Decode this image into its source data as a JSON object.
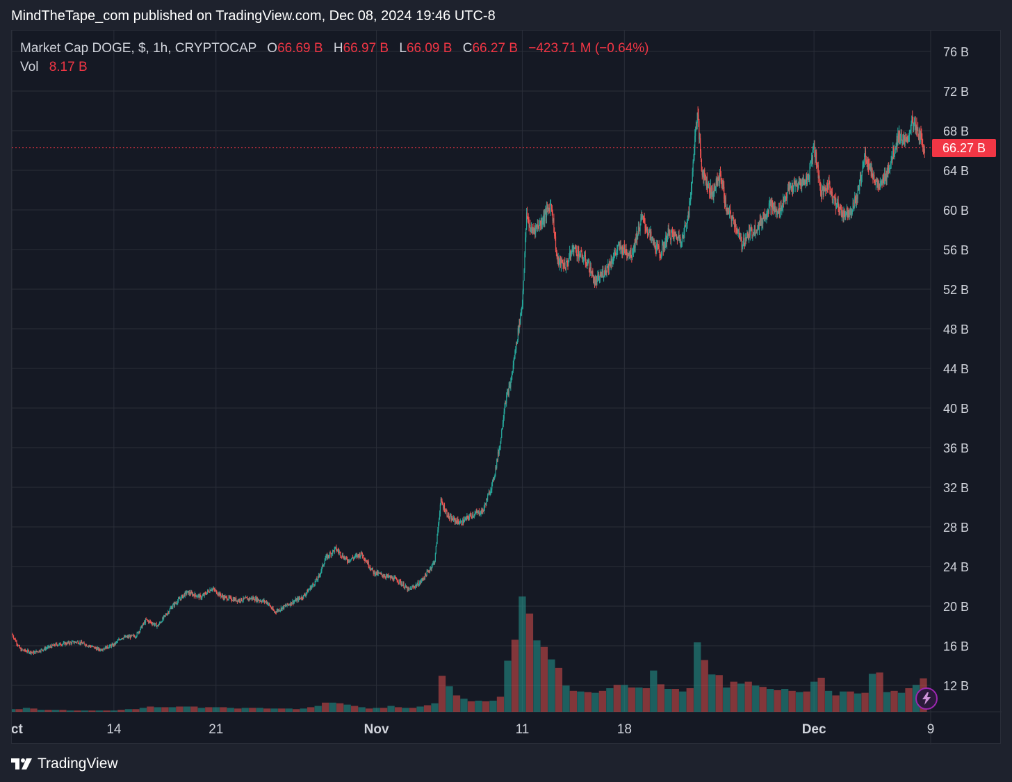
{
  "header": {
    "text": "MindTheTape_com published on TradingView.com, Dec 08, 2024 19:46 UTC-8"
  },
  "legend": {
    "symbol": "Market Cap DOGE, $, 1h, CRYPTOCAP",
    "open_label": "O",
    "open": "66.69 B",
    "high_label": "H",
    "high": "66.97 B",
    "low_label": "L",
    "low": "66.09 B",
    "close_label": "C",
    "close": "66.27 B",
    "change": "−423.71 M (−0.64%)",
    "vol_label": "Vol",
    "vol": "8.17 B"
  },
  "last_price_label": "66.27 B",
  "brand": {
    "name": "TradingView"
  },
  "colors": {
    "background": "#151924",
    "up": "#26a69a",
    "down": "#ef5350",
    "grid": "#2a2e39",
    "last_price": "#f23645",
    "text": "#d1d4dc"
  },
  "icons": {
    "brand": "tradingview-logo-icon",
    "flash": "lightning-icon"
  },
  "chart_data": {
    "type": "candlestick",
    "interval": "1h",
    "unit": "B",
    "y_range": [
      9,
      78
    ],
    "y_ticks": [
      12,
      16,
      20,
      24,
      28,
      32,
      36,
      40,
      44,
      48,
      52,
      56,
      60,
      64,
      68,
      72,
      76
    ],
    "y_tick_labels": [
      "12 B",
      "16 B",
      "20 B",
      "24 B",
      "28 B",
      "32 B",
      "36 B",
      "40 B",
      "44 B",
      "48 B",
      "52 B",
      "56 B",
      "60 B",
      "64 B",
      "68 B",
      "72 B",
      "76 B"
    ],
    "x_ticks": [
      {
        "label": "Oct",
        "day": 7
      },
      {
        "label": "14",
        "day": 14
      },
      {
        "label": "21",
        "day": 21
      },
      {
        "label": "Nov",
        "day": 32
      },
      {
        "label": "11",
        "day": 42
      },
      {
        "label": "18",
        "day": 49
      },
      {
        "label": "Dec",
        "day": 62
      },
      {
        "label": "9",
        "day": 70
      }
    ],
    "x_range_days": [
      7,
      70
    ],
    "last_price": 66.27,
    "close_path": [
      {
        "day": 7.0,
        "close": 17.2
      },
      {
        "day": 7.6,
        "close": 15.6
      },
      {
        "day": 8.5,
        "close": 15.3
      },
      {
        "day": 10.0,
        "close": 16.1
      },
      {
        "day": 11.5,
        "close": 16.4
      },
      {
        "day": 12.5,
        "close": 15.9
      },
      {
        "day": 13.0,
        "close": 15.6
      },
      {
        "day": 14.0,
        "close": 16.1
      },
      {
        "day": 14.5,
        "close": 16.8
      },
      {
        "day": 15.5,
        "close": 17.0
      },
      {
        "day": 16.2,
        "close": 18.6
      },
      {
        "day": 17.0,
        "close": 18.0
      },
      {
        "day": 18.0,
        "close": 20.0
      },
      {
        "day": 19.0,
        "close": 21.4
      },
      {
        "day": 20.0,
        "close": 20.9
      },
      {
        "day": 20.7,
        "close": 21.8
      },
      {
        "day": 21.5,
        "close": 20.9
      },
      {
        "day": 22.5,
        "close": 20.6
      },
      {
        "day": 23.5,
        "close": 20.8
      },
      {
        "day": 24.5,
        "close": 20.4
      },
      {
        "day": 25.0,
        "close": 19.4
      },
      {
        "day": 26.0,
        "close": 20.2
      },
      {
        "day": 27.0,
        "close": 21.0
      },
      {
        "day": 28.0,
        "close": 22.8
      },
      {
        "day": 28.5,
        "close": 24.8
      },
      {
        "day": 29.2,
        "close": 25.8
      },
      {
        "day": 30.0,
        "close": 24.6
      },
      {
        "day": 31.0,
        "close": 25.3
      },
      {
        "day": 31.8,
        "close": 23.4
      },
      {
        "day": 32.5,
        "close": 23.1
      },
      {
        "day": 33.5,
        "close": 22.6
      },
      {
        "day": 34.2,
        "close": 21.6
      },
      {
        "day": 35.0,
        "close": 22.4
      },
      {
        "day": 35.6,
        "close": 23.6
      },
      {
        "day": 36.0,
        "close": 24.6
      },
      {
        "day": 36.4,
        "close": 30.6
      },
      {
        "day": 37.0,
        "close": 28.9
      },
      {
        "day": 37.8,
        "close": 28.4
      },
      {
        "day": 38.5,
        "close": 29.2
      },
      {
        "day": 39.3,
        "close": 29.6
      },
      {
        "day": 40.0,
        "close": 32.6
      },
      {
        "day": 40.5,
        "close": 36.6
      },
      {
        "day": 40.8,
        "close": 40.5
      },
      {
        "day": 41.2,
        "close": 42.5
      },
      {
        "day": 41.6,
        "close": 46.6
      },
      {
        "day": 42.0,
        "close": 50.6
      },
      {
        "day": 42.3,
        "close": 59.6
      },
      {
        "day": 42.6,
        "close": 57.8
      },
      {
        "day": 43.2,
        "close": 58.6
      },
      {
        "day": 44.0,
        "close": 60.6
      },
      {
        "day": 44.4,
        "close": 54.8
      },
      {
        "day": 45.0,
        "close": 54.4
      },
      {
        "day": 45.5,
        "close": 56.2
      },
      {
        "day": 46.5,
        "close": 54.6
      },
      {
        "day": 47.0,
        "close": 52.6
      },
      {
        "day": 48.0,
        "close": 54.6
      },
      {
        "day": 48.6,
        "close": 56.2
      },
      {
        "day": 49.5,
        "close": 55.6
      },
      {
        "day": 50.2,
        "close": 59.2
      },
      {
        "day": 51.0,
        "close": 56.6
      },
      {
        "day": 51.5,
        "close": 55.6
      },
      {
        "day": 52.0,
        "close": 57.6
      },
      {
        "day": 53.0,
        "close": 57.1
      },
      {
        "day": 53.5,
        "close": 60.6
      },
      {
        "day": 53.8,
        "close": 66.6
      },
      {
        "day": 54.0,
        "close": 70.0
      },
      {
        "day": 54.3,
        "close": 64.1
      },
      {
        "day": 55.0,
        "close": 61.6
      },
      {
        "day": 55.6,
        "close": 63.6
      },
      {
        "day": 56.0,
        "close": 60.0
      },
      {
        "day": 56.6,
        "close": 58.6
      },
      {
        "day": 57.0,
        "close": 56.6
      },
      {
        "day": 57.5,
        "close": 57.5
      },
      {
        "day": 58.3,
        "close": 58.6
      },
      {
        "day": 59.0,
        "close": 60.6
      },
      {
        "day": 59.5,
        "close": 59.6
      },
      {
        "day": 60.3,
        "close": 62.1
      },
      {
        "day": 61.0,
        "close": 62.6
      },
      {
        "day": 61.6,
        "close": 63.2
      },
      {
        "day": 62.0,
        "close": 66.6
      },
      {
        "day": 62.5,
        "close": 61.6
      },
      {
        "day": 63.0,
        "close": 62.6
      },
      {
        "day": 63.5,
        "close": 60.6
      },
      {
        "day": 64.0,
        "close": 59.6
      },
      {
        "day": 64.6,
        "close": 60.1
      },
      {
        "day": 65.0,
        "close": 61.6
      },
      {
        "day": 65.5,
        "close": 65.6
      },
      {
        "day": 66.0,
        "close": 63.6
      },
      {
        "day": 66.5,
        "close": 62.1
      },
      {
        "day": 67.2,
        "close": 64.6
      },
      {
        "day": 67.8,
        "close": 67.6
      },
      {
        "day": 68.3,
        "close": 66.6
      },
      {
        "day": 68.7,
        "close": 68.9
      },
      {
        "day": 69.2,
        "close": 67.6
      },
      {
        "day": 69.6,
        "close": 66.27
      }
    ],
    "volume": {
      "scale_max": 26,
      "bars": [
        {
          "day": 7.0,
          "v": 0.4
        },
        {
          "day": 7.5,
          "v": 0.4
        },
        {
          "day": 8.0,
          "v": 0.6
        },
        {
          "day": 8.5,
          "v": 0.5
        },
        {
          "day": 9.0,
          "v": 0.3
        },
        {
          "day": 9.5,
          "v": 0.3
        },
        {
          "day": 10.0,
          "v": 0.3
        },
        {
          "day": 10.5,
          "v": 0.3
        },
        {
          "day": 11.0,
          "v": 0.2
        },
        {
          "day": 11.5,
          "v": 0.2
        },
        {
          "day": 12.0,
          "v": 0.2
        },
        {
          "day": 12.5,
          "v": 0.2
        },
        {
          "day": 13.0,
          "v": 0.2
        },
        {
          "day": 13.5,
          "v": 0.2
        },
        {
          "day": 14.0,
          "v": 0.2
        },
        {
          "day": 14.5,
          "v": 0.3
        },
        {
          "day": 15.0,
          "v": 0.4
        },
        {
          "day": 15.5,
          "v": 0.4
        },
        {
          "day": 16.0,
          "v": 0.6
        },
        {
          "day": 16.5,
          "v": 0.8
        },
        {
          "day": 17.0,
          "v": 0.7
        },
        {
          "day": 17.5,
          "v": 0.7
        },
        {
          "day": 18.0,
          "v": 0.7
        },
        {
          "day": 18.5,
          "v": 0.8
        },
        {
          "day": 19.0,
          "v": 0.8
        },
        {
          "day": 19.5,
          "v": 0.8
        },
        {
          "day": 20.0,
          "v": 0.6
        },
        {
          "day": 20.5,
          "v": 0.7
        },
        {
          "day": 21.0,
          "v": 0.7
        },
        {
          "day": 21.5,
          "v": 0.7
        },
        {
          "day": 22.0,
          "v": 0.6
        },
        {
          "day": 22.5,
          "v": 0.5
        },
        {
          "day": 23.0,
          "v": 0.6
        },
        {
          "day": 23.5,
          "v": 0.6
        },
        {
          "day": 24.0,
          "v": 0.6
        },
        {
          "day": 24.5,
          "v": 0.5
        },
        {
          "day": 25.0,
          "v": 0.5
        },
        {
          "day": 25.5,
          "v": 0.5
        },
        {
          "day": 26.0,
          "v": 0.5
        },
        {
          "day": 26.5,
          "v": 0.4
        },
        {
          "day": 27.0,
          "v": 0.5
        },
        {
          "day": 27.5,
          "v": 0.7
        },
        {
          "day": 28.0,
          "v": 0.9
        },
        {
          "day": 28.5,
          "v": 1.4
        },
        {
          "day": 29.0,
          "v": 1.4
        },
        {
          "day": 29.5,
          "v": 1.3
        },
        {
          "day": 30.0,
          "v": 1.1
        },
        {
          "day": 30.5,
          "v": 0.9
        },
        {
          "day": 31.0,
          "v": 0.7
        },
        {
          "day": 31.5,
          "v": 0.5
        },
        {
          "day": 32.0,
          "v": 0.6
        },
        {
          "day": 32.5,
          "v": 0.6
        },
        {
          "day": 33.0,
          "v": 0.9
        },
        {
          "day": 33.5,
          "v": 0.7
        },
        {
          "day": 34.0,
          "v": 0.6
        },
        {
          "day": 34.5,
          "v": 0.6
        },
        {
          "day": 35.0,
          "v": 0.8
        },
        {
          "day": 35.5,
          "v": 1.0
        },
        {
          "day": 36.0,
          "v": 1.3
        },
        {
          "day": 36.5,
          "v": 5.5
        },
        {
          "day": 37.0,
          "v": 3.9
        },
        {
          "day": 37.5,
          "v": 2.5
        },
        {
          "day": 38.0,
          "v": 2.0
        },
        {
          "day": 38.5,
          "v": 1.6
        },
        {
          "day": 39.0,
          "v": 1.7
        },
        {
          "day": 39.5,
          "v": 1.6
        },
        {
          "day": 40.0,
          "v": 1.7
        },
        {
          "day": 40.5,
          "v": 2.3
        },
        {
          "day": 41.0,
          "v": 7.8
        },
        {
          "day": 41.5,
          "v": 11.0
        },
        {
          "day": 42.0,
          "v": 17.6
        },
        {
          "day": 42.5,
          "v": 15.0
        },
        {
          "day": 43.0,
          "v": 10.9
        },
        {
          "day": 43.5,
          "v": 9.9
        },
        {
          "day": 44.0,
          "v": 8.0
        },
        {
          "day": 44.5,
          "v": 6.7
        },
        {
          "day": 45.0,
          "v": 4.0
        },
        {
          "day": 45.5,
          "v": 3.2
        },
        {
          "day": 46.0,
          "v": 3.1
        },
        {
          "day": 46.5,
          "v": 3.0
        },
        {
          "day": 47.0,
          "v": 2.9
        },
        {
          "day": 47.5,
          "v": 3.2
        },
        {
          "day": 48.0,
          "v": 3.6
        },
        {
          "day": 48.5,
          "v": 4.1
        },
        {
          "day": 49.0,
          "v": 4.1
        },
        {
          "day": 49.5,
          "v": 3.7
        },
        {
          "day": 50.0,
          "v": 3.7
        },
        {
          "day": 50.5,
          "v": 3.6
        },
        {
          "day": 51.0,
          "v": 6.3
        },
        {
          "day": 51.5,
          "v": 4.2
        },
        {
          "day": 52.0,
          "v": 3.5
        },
        {
          "day": 52.5,
          "v": 3.5
        },
        {
          "day": 53.0,
          "v": 3.1
        },
        {
          "day": 53.5,
          "v": 3.6
        },
        {
          "day": 54.0,
          "v": 10.6
        },
        {
          "day": 54.5,
          "v": 7.9
        },
        {
          "day": 55.0,
          "v": 5.7
        },
        {
          "day": 55.5,
          "v": 5.6
        },
        {
          "day": 56.0,
          "v": 3.7
        },
        {
          "day": 56.5,
          "v": 4.6
        },
        {
          "day": 57.0,
          "v": 4.3
        },
        {
          "day": 57.5,
          "v": 4.6
        },
        {
          "day": 58.0,
          "v": 4.0
        },
        {
          "day": 58.5,
          "v": 3.8
        },
        {
          "day": 59.0,
          "v": 3.5
        },
        {
          "day": 59.5,
          "v": 3.3
        },
        {
          "day": 60.0,
          "v": 3.5
        },
        {
          "day": 60.5,
          "v": 3.2
        },
        {
          "day": 61.0,
          "v": 3.0
        },
        {
          "day": 61.5,
          "v": 3.1
        },
        {
          "day": 62.0,
          "v": 4.6
        },
        {
          "day": 62.5,
          "v": 5.2
        },
        {
          "day": 63.0,
          "v": 3.2
        },
        {
          "day": 63.5,
          "v": 2.5
        },
        {
          "day": 64.0,
          "v": 3.1
        },
        {
          "day": 64.5,
          "v": 3.1
        },
        {
          "day": 65.0,
          "v": 2.8
        },
        {
          "day": 65.5,
          "v": 2.9
        },
        {
          "day": 66.0,
          "v": 5.8
        },
        {
          "day": 66.5,
          "v": 6.0
        },
        {
          "day": 67.0,
          "v": 3.0
        },
        {
          "day": 67.5,
          "v": 3.2
        },
        {
          "day": 68.0,
          "v": 2.9
        },
        {
          "day": 68.5,
          "v": 3.6
        },
        {
          "day": 69.0,
          "v": 4.1
        },
        {
          "day": 69.5,
          "v": 5.1
        }
      ]
    }
  }
}
